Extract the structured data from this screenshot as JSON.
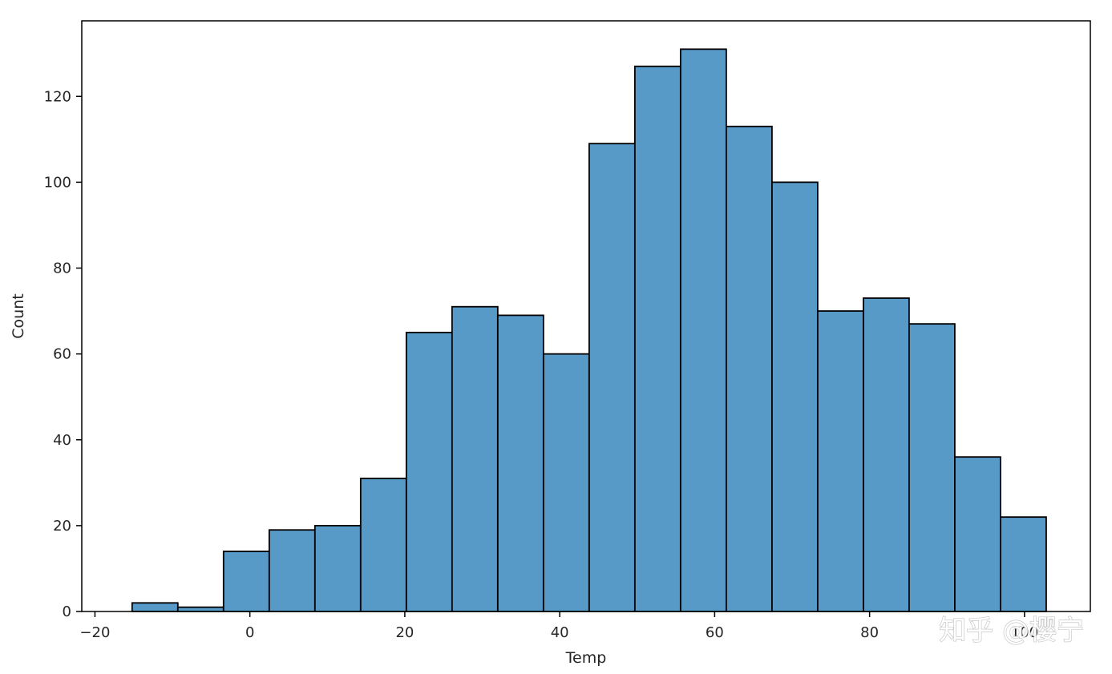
{
  "chart_data": {
    "type": "bar",
    "xlabel": "Temp",
    "ylabel": "Count",
    "xlim": [
      -21.7,
      108.5
    ],
    "ylim": [
      0,
      137.6
    ],
    "x_ticks": [
      -20,
      0,
      20,
      40,
      60,
      80,
      100
    ],
    "y_ticks": [
      0,
      20,
      40,
      60,
      80,
      100,
      120
    ],
    "x_tick_labels": [
      "−20",
      "0",
      "20",
      "40",
      "60",
      "80",
      "100"
    ],
    "y_tick_labels": [
      "0",
      "20",
      "40",
      "60",
      "80",
      "100",
      "120"
    ],
    "bin_edges": [
      -15.2,
      -9.3,
      -3.4,
      2.5,
      8.4,
      14.3,
      20.2,
      26.1,
      32.0,
      37.9,
      43.8,
      49.7,
      55.6,
      61.5,
      67.4,
      73.3,
      79.2,
      85.1,
      91.0,
      96.9,
      102.8
    ],
    "values": [
      2,
      1,
      14,
      19,
      20,
      31,
      65,
      71,
      69,
      60,
      109,
      127,
      131,
      113,
      100,
      70,
      73,
      67,
      36,
      22
    ],
    "bar_color": "#5799c7",
    "edge_color": "#000000",
    "grid": false
  },
  "watermark": {
    "text": "知乎 @樱宁"
  }
}
